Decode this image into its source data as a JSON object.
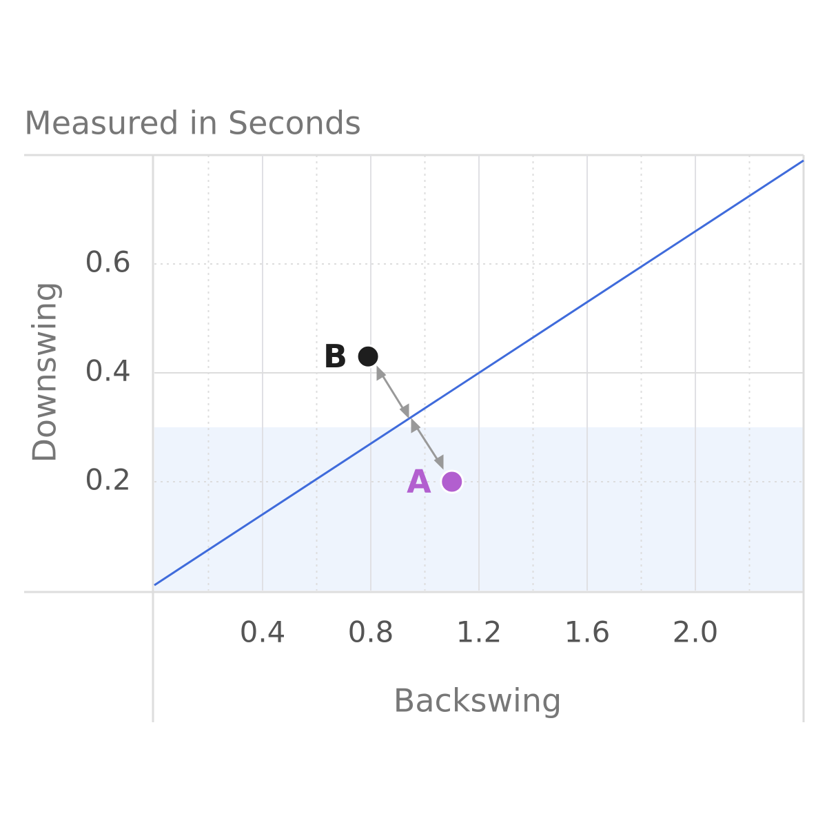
{
  "chart_data": {
    "type": "scatter",
    "title": "Measured in Seconds",
    "x_label": "Backswing",
    "y_label": "Downswing",
    "xlim": [
      0,
      2.4
    ],
    "ylim": [
      0,
      0.8
    ],
    "xticks": [
      {
        "value": 0.4,
        "label": "0.4"
      },
      {
        "value": 0.8,
        "label": "0.8"
      },
      {
        "value": 1.2,
        "label": "1.2"
      },
      {
        "value": 1.6,
        "label": "1.6"
      },
      {
        "value": 2.0,
        "label": "2.0"
      }
    ],
    "xminor": [
      0.2,
      0.6,
      1.0,
      1.4,
      1.8,
      2.2
    ],
    "yticks": [
      0.2,
      0.4,
      0.6
    ],
    "band": [
      0,
      0.3
    ],
    "band_color": "#eef4fd",
    "line": {
      "color": "#3f6bdb",
      "x": [
        0,
        2.4
      ],
      "y": [
        0.01,
        0.79
      ]
    },
    "series": [
      {
        "name": "B",
        "color": "#1e1e1e",
        "x": [
          0.79
        ],
        "values": [
          0.43
        ]
      },
      {
        "name": "A",
        "color": "#b25fcf",
        "x": [
          1.1
        ],
        "values": [
          0.2
        ]
      }
    ]
  }
}
